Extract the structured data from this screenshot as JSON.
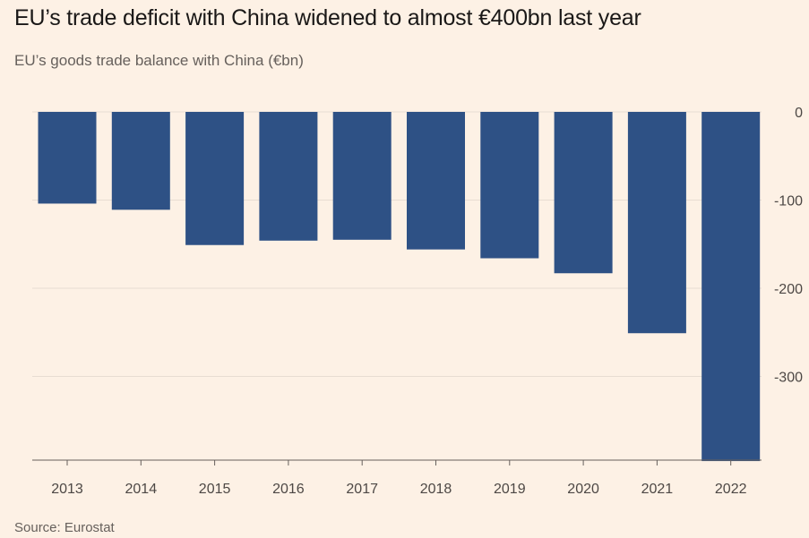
{
  "title": "EU’s trade deficit with China widened to almost €400bn last year",
  "subtitle": "EU’s goods trade balance with China (€bn)",
  "source": "Source: Eurostat",
  "colors": {
    "background": "#fdf1e5",
    "bar": "#2e5185",
    "grid": "#e8ddd2",
    "axis": "#66605c"
  },
  "chart_data": {
    "type": "bar",
    "categories": [
      "2013",
      "2014",
      "2015",
      "2016",
      "2017",
      "2018",
      "2019",
      "2020",
      "2021",
      "2022"
    ],
    "values": [
      -104,
      -111,
      -151,
      -146,
      -145,
      -156,
      -166,
      -183,
      -251,
      -396
    ],
    "title": "EU’s trade deficit with China widened to almost €400bn last year",
    "subtitle": "EU’s goods trade balance with China (€bn)",
    "xlabel": "",
    "ylabel": "",
    "ylim": [
      -396,
      0
    ],
    "yticks": [
      0,
      -100,
      -200,
      -300
    ],
    "ytick_labels": [
      "0",
      "-100",
      "-200",
      "-300"
    ],
    "y_axis_side": "right",
    "grid": true
  }
}
